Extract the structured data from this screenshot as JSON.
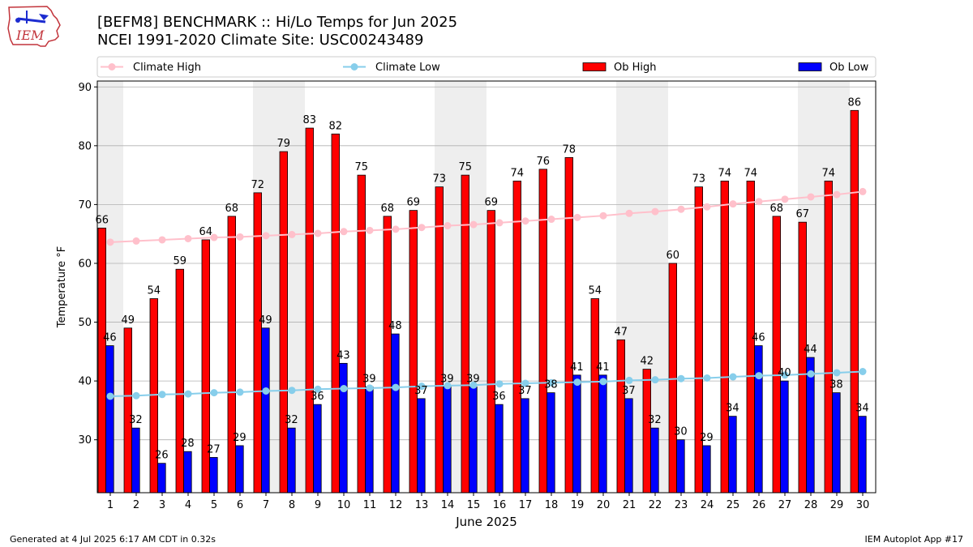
{
  "header": {
    "logo_text": "IEM",
    "title_line1": "[BEFM8] BENCHMARK :: Hi/Lo Temps for Jun 2025",
    "title_line2": "NCEI 1991-2020 Climate Site: USC00243489"
  },
  "footer": {
    "left": "Generated at 4 Jul 2025 6:17 AM CDT in 0.32s",
    "right": "IEM Autoplot App #17"
  },
  "colors": {
    "ob_high": "#ff0000",
    "ob_low": "#0000ff",
    "climate_high": "#ffc0cb",
    "climate_low": "#87ceeb",
    "weekend_band": "#eeeeee"
  },
  "chart_data": {
    "type": "bar",
    "xlabel": "June 2025",
    "ylabel": "Temperature °F",
    "ylim": [
      21,
      91
    ],
    "yticks": [
      30,
      40,
      50,
      60,
      70,
      80,
      90
    ],
    "grid": "horizontal",
    "legend_position": "top",
    "categories": [
      "1",
      "2",
      "3",
      "4",
      "5",
      "6",
      "7",
      "8",
      "9",
      "10",
      "11",
      "12",
      "13",
      "14",
      "15",
      "16",
      "17",
      "18",
      "19",
      "20",
      "21",
      "22",
      "23",
      "24",
      "25",
      "26",
      "27",
      "28",
      "29",
      "30"
    ],
    "weekend_days": [
      1,
      7,
      8,
      14,
      15,
      21,
      22,
      28,
      29
    ],
    "series": [
      {
        "name": "Climate High",
        "kind": "line",
        "values": [
          63.6,
          63.8,
          64.0,
          64.2,
          64.4,
          64.5,
          64.7,
          64.9,
          65.1,
          65.4,
          65.6,
          65.8,
          66.1,
          66.4,
          66.6,
          66.9,
          67.2,
          67.5,
          67.8,
          68.1,
          68.5,
          68.8,
          69.2,
          69.6,
          70.1,
          70.5,
          70.9,
          71.3,
          71.7,
          72.2
        ]
      },
      {
        "name": "Climate Low",
        "kind": "line",
        "values": [
          37.4,
          37.5,
          37.7,
          37.8,
          38.0,
          38.1,
          38.3,
          38.4,
          38.6,
          38.7,
          38.8,
          38.9,
          39.1,
          39.2,
          39.3,
          39.5,
          39.6,
          39.7,
          39.8,
          39.9,
          40.1,
          40.2,
          40.4,
          40.5,
          40.7,
          40.9,
          41.0,
          41.2,
          41.4,
          41.6
        ]
      },
      {
        "name": "Ob High",
        "kind": "bar",
        "values": [
          66,
          49,
          54,
          59,
          64,
          68,
          72,
          79,
          83,
          82,
          75,
          68,
          69,
          73,
          75,
          69,
          74,
          76,
          78,
          54,
          47,
          42,
          60,
          73,
          74,
          74,
          68,
          67,
          74,
          86
        ]
      },
      {
        "name": "Ob Low",
        "kind": "bar",
        "values": [
          46,
          32,
          26,
          28,
          27,
          29,
          49,
          32,
          36,
          43,
          39,
          48,
          37,
          39,
          39,
          36,
          37,
          38,
          41,
          41,
          37,
          32,
          30,
          29,
          34,
          46,
          40,
          44,
          38,
          34
        ]
      }
    ]
  }
}
